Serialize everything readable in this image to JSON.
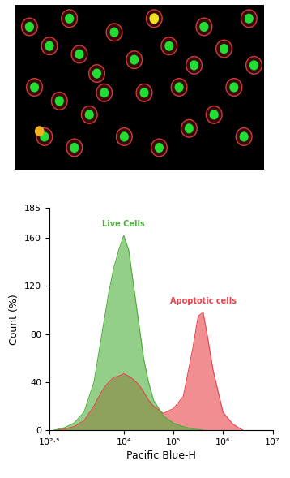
{
  "chart_data": {
    "type": "area",
    "xlabel": "Pacific Blue-H",
    "ylabel": "Count (%)",
    "log": "x",
    "xlim": [
      316.227766,
      10000000
    ],
    "xticks": [
      {
        "value": 316.227766,
        "label": "10²·⁵"
      },
      {
        "value": 10000,
        "label": "10⁴"
      },
      {
        "value": 100000,
        "label": "10⁵"
      },
      {
        "value": 1000000,
        "label": "10⁶"
      },
      {
        "value": 10000000,
        "label": "10⁷"
      }
    ],
    "ylim": [
      0,
      185
    ],
    "yticks": [
      0,
      40,
      80,
      120,
      160,
      185
    ],
    "grid": false,
    "series": [
      {
        "name": "Apoptotic cells",
        "color": "#e8434a",
        "x": [
          398,
          631,
          1000,
          1585,
          2512,
          3162,
          3981,
          5012,
          6310,
          7943,
          10000,
          12589,
          15849,
          19953,
          25119,
          31623,
          39811,
          63096,
          100000,
          158489,
          251189,
          316228,
          398107,
          501187,
          630957,
          1000000,
          1584893,
          2511886
        ],
        "values": [
          0,
          1,
          3,
          8,
          20,
          28,
          35,
          40,
          44,
          45,
          47,
          45,
          42,
          38,
          32,
          25,
          20,
          14,
          18,
          28,
          70,
          95,
          98,
          75,
          50,
          15,
          5,
          0
        ]
      },
      {
        "name": "Live Cells",
        "color": "#4caf3a",
        "x": [
          398,
          631,
          1000,
          1585,
          2512,
          3162,
          3981,
          5012,
          6310,
          7943,
          10000,
          12589,
          15849,
          19953,
          25119,
          31623,
          39811,
          63096,
          100000,
          158489,
          251189,
          398107
        ],
        "values": [
          0,
          2,
          6,
          15,
          40,
          65,
          90,
          115,
          135,
          150,
          162,
          150,
          120,
          90,
          60,
          40,
          25,
          12,
          6,
          3,
          1,
          0
        ]
      }
    ]
  }
}
